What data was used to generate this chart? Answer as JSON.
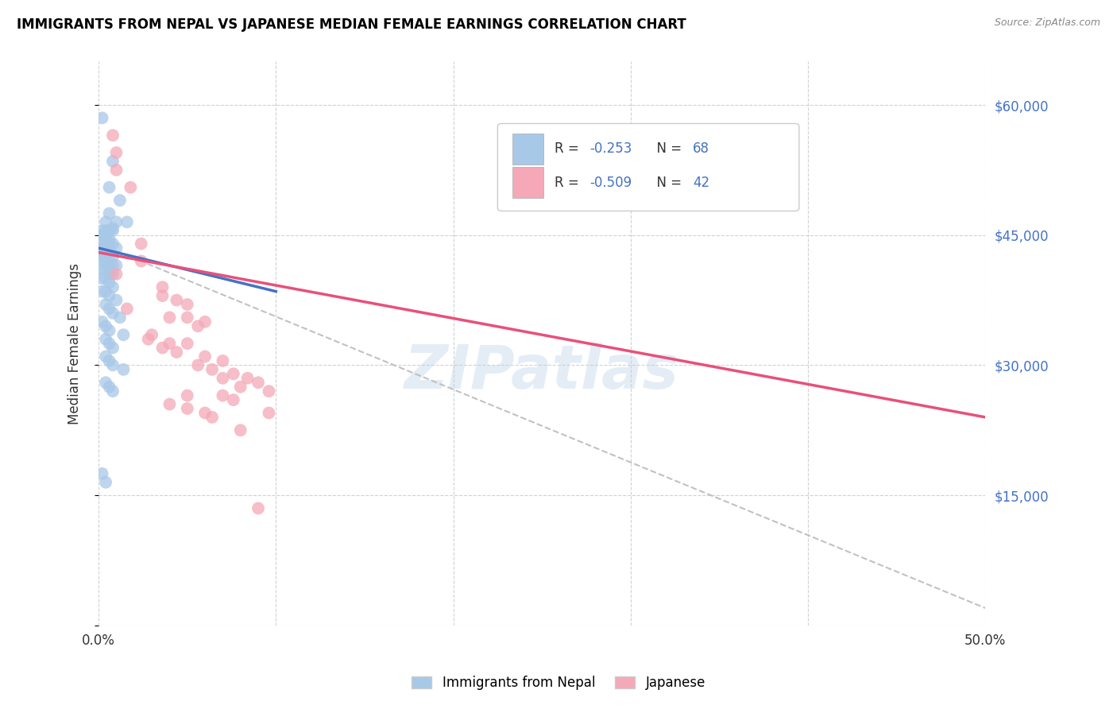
{
  "title": "IMMIGRANTS FROM NEPAL VS JAPANESE MEDIAN FEMALE EARNINGS CORRELATION CHART",
  "source": "Source: ZipAtlas.com",
  "ylabel": "Median Female Earnings",
  "legend_label1": "Immigrants from Nepal",
  "legend_label2": "Japanese",
  "blue_color": "#a8c8e8",
  "pink_color": "#f4a8b8",
  "blue_line_color": "#4472c4",
  "pink_line_color": "#e8507a",
  "gray_dash_color": "#bbbbbb",
  "axis_color": "#4472c4",
  "text_color": "#333333",
  "blue_scatter": [
    [
      0.002,
      58500
    ],
    [
      0.008,
      53500
    ],
    [
      0.006,
      50500
    ],
    [
      0.012,
      49000
    ],
    [
      0.006,
      47500
    ],
    [
      0.01,
      46500
    ],
    [
      0.016,
      46500
    ],
    [
      0.004,
      46500
    ],
    [
      0.008,
      45800
    ],
    [
      0.002,
      45500
    ],
    [
      0.004,
      45500
    ],
    [
      0.006,
      45500
    ],
    [
      0.008,
      45500
    ],
    [
      0.002,
      45000
    ],
    [
      0.004,
      45000
    ],
    [
      0.006,
      44500
    ],
    [
      0.002,
      44500
    ],
    [
      0.004,
      44500
    ],
    [
      0.006,
      44000
    ],
    [
      0.008,
      44000
    ],
    [
      0.002,
      43500
    ],
    [
      0.004,
      43500
    ],
    [
      0.006,
      43500
    ],
    [
      0.01,
      43500
    ],
    [
      0.002,
      43000
    ],
    [
      0.004,
      43000
    ],
    [
      0.006,
      43000
    ],
    [
      0.002,
      42500
    ],
    [
      0.004,
      42500
    ],
    [
      0.006,
      42500
    ],
    [
      0.008,
      42500
    ],
    [
      0.002,
      42000
    ],
    [
      0.004,
      42000
    ],
    [
      0.006,
      41500
    ],
    [
      0.008,
      41500
    ],
    [
      0.01,
      41500
    ],
    [
      0.002,
      41000
    ],
    [
      0.004,
      41000
    ],
    [
      0.006,
      40500
    ],
    [
      0.008,
      40500
    ],
    [
      0.002,
      40000
    ],
    [
      0.004,
      40000
    ],
    [
      0.006,
      39500
    ],
    [
      0.008,
      39000
    ],
    [
      0.002,
      38500
    ],
    [
      0.004,
      38500
    ],
    [
      0.006,
      38000
    ],
    [
      0.01,
      37500
    ],
    [
      0.004,
      37000
    ],
    [
      0.006,
      36500
    ],
    [
      0.008,
      36000
    ],
    [
      0.012,
      35500
    ],
    [
      0.002,
      35000
    ],
    [
      0.004,
      34500
    ],
    [
      0.006,
      34000
    ],
    [
      0.014,
      33500
    ],
    [
      0.004,
      33000
    ],
    [
      0.006,
      32500
    ],
    [
      0.008,
      32000
    ],
    [
      0.004,
      31000
    ],
    [
      0.006,
      30500
    ],
    [
      0.008,
      30000
    ],
    [
      0.014,
      29500
    ],
    [
      0.004,
      28000
    ],
    [
      0.006,
      27500
    ],
    [
      0.008,
      27000
    ],
    [
      0.002,
      17500
    ],
    [
      0.004,
      16500
    ]
  ],
  "pink_scatter": [
    [
      0.008,
      56500
    ],
    [
      0.01,
      54500
    ],
    [
      0.01,
      52500
    ],
    [
      0.018,
      50500
    ],
    [
      0.024,
      44000
    ],
    [
      0.036,
      39000
    ],
    [
      0.036,
      38000
    ],
    [
      0.044,
      37500
    ],
    [
      0.05,
      37000
    ],
    [
      0.04,
      35500
    ],
    [
      0.05,
      35500
    ],
    [
      0.06,
      35000
    ],
    [
      0.056,
      34500
    ],
    [
      0.03,
      33500
    ],
    [
      0.04,
      32500
    ],
    [
      0.05,
      32500
    ],
    [
      0.036,
      32000
    ],
    [
      0.044,
      31500
    ],
    [
      0.06,
      31000
    ],
    [
      0.07,
      30500
    ],
    [
      0.056,
      30000
    ],
    [
      0.064,
      29500
    ],
    [
      0.076,
      29000
    ],
    [
      0.07,
      28500
    ],
    [
      0.084,
      28500
    ],
    [
      0.09,
      28000
    ],
    [
      0.08,
      27500
    ],
    [
      0.096,
      27000
    ],
    [
      0.07,
      26500
    ],
    [
      0.076,
      26000
    ],
    [
      0.04,
      25500
    ],
    [
      0.05,
      25000
    ],
    [
      0.06,
      24500
    ],
    [
      0.064,
      24000
    ],
    [
      0.05,
      26500
    ],
    [
      0.024,
      42000
    ],
    [
      0.08,
      22500
    ],
    [
      0.09,
      13500
    ],
    [
      0.096,
      24500
    ],
    [
      0.01,
      40500
    ],
    [
      0.016,
      36500
    ],
    [
      0.028,
      33000
    ]
  ],
  "blue_line_x": [
    0.0,
    0.1
  ],
  "blue_line_y": [
    43500,
    38500
  ],
  "pink_line_x": [
    0.0,
    0.5
  ],
  "pink_line_y": [
    43000,
    24000
  ],
  "gray_line_x": [
    0.0,
    0.5
  ],
  "gray_line_y": [
    44000,
    2000
  ],
  "xlim": [
    0.0,
    0.5
  ],
  "ylim": [
    0,
    65000
  ],
  "yticks": [
    0,
    15000,
    30000,
    45000,
    60000
  ],
  "ytick_labels": [
    "",
    "$15,000",
    "$30,000",
    "$45,000",
    "$60,000"
  ],
  "xtick_positions": [
    0.0,
    0.1,
    0.2,
    0.3,
    0.4,
    0.5
  ],
  "watermark": "ZIPatlas",
  "r1": "-0.253",
  "n1": "68",
  "r2": "-0.509",
  "n2": "42"
}
